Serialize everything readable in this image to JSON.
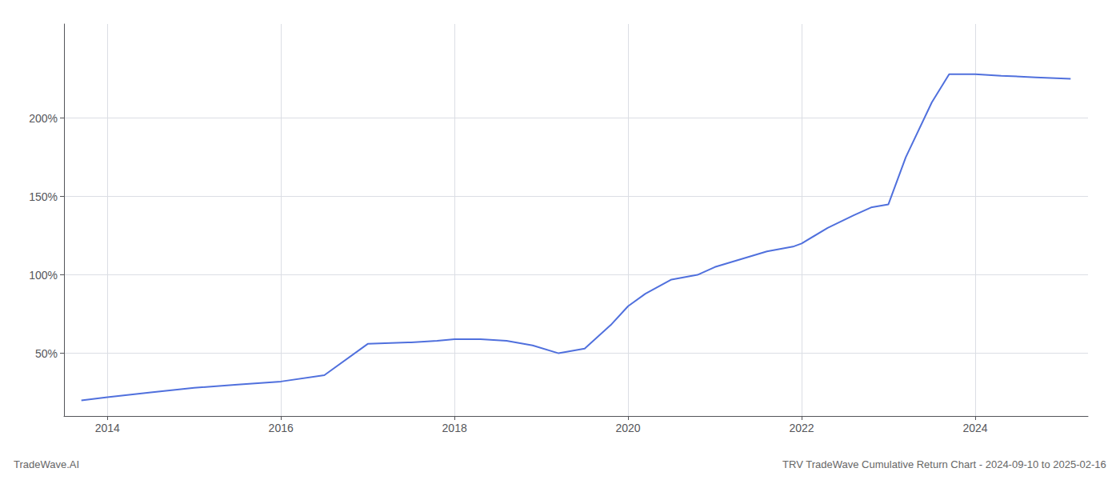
{
  "chart_data": {
    "type": "line",
    "title": "TRV TradeWave Cumulative Return Chart - 2024-09-10 to 2025-02-16",
    "annotations": [
      "TradeWave.AI"
    ],
    "x": [
      2013.7,
      2014.0,
      2014.5,
      2015.0,
      2015.5,
      2016.0,
      2016.5,
      2017.0,
      2017.5,
      2017.8,
      2018.0,
      2018.3,
      2018.6,
      2018.9,
      2019.2,
      2019.5,
      2019.8,
      2020.0,
      2020.2,
      2020.5,
      2020.8,
      2021.0,
      2021.3,
      2021.6,
      2021.9,
      2022.0,
      2022.3,
      2022.6,
      2022.8,
      2023.0,
      2023.2,
      2023.5,
      2023.7,
      2024.0,
      2024.3,
      2024.7,
      2025.1
    ],
    "values": [
      20,
      22,
      25,
      28,
      30,
      32,
      36,
      56,
      57,
      58,
      59,
      59,
      58,
      55,
      50,
      53,
      68,
      80,
      88,
      97,
      100,
      105,
      110,
      115,
      118,
      120,
      130,
      138,
      143,
      145,
      175,
      210,
      228,
      228,
      227,
      226,
      225
    ],
    "xlim": [
      2013.5,
      2025.3
    ],
    "xticks": [
      2014,
      2016,
      2018,
      2020,
      2022,
      2024
    ],
    "ylim": [
      10,
      260
    ],
    "yticks": [
      {
        "value": 50,
        "label": "50%"
      },
      {
        "value": 100,
        "label": "100%"
      },
      {
        "value": 150,
        "label": "150%"
      },
      {
        "value": 200,
        "label": "200%"
      }
    ],
    "grid": true
  }
}
